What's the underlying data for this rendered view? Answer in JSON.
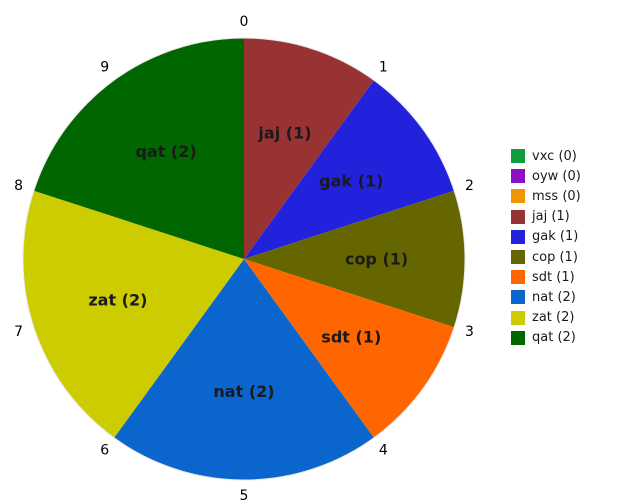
{
  "chart_data": {
    "type": "pie",
    "total": 10,
    "boundary_ticks": [
      "0",
      "1",
      "2",
      "3",
      "4",
      "5",
      "6",
      "7",
      "8",
      "9"
    ],
    "slices": [
      {
        "name": "vxc",
        "value": 0,
        "label": "vxc (0)",
        "color": "#0f9d3d"
      },
      {
        "name": "oyw",
        "value": 0,
        "label": "oyw (0)",
        "color": "#8b10c6"
      },
      {
        "name": "mss",
        "value": 0,
        "label": "mss (0)",
        "color": "#f29400"
      },
      {
        "name": "jaj",
        "value": 1,
        "label": "jaj (1)",
        "color": "#993333"
      },
      {
        "name": "gak",
        "value": 1,
        "label": "gak (1)",
        "color": "#2222dd"
      },
      {
        "name": "cop",
        "value": 1,
        "label": "cop (1)",
        "color": "#666600"
      },
      {
        "name": "sdt",
        "value": 1,
        "label": "sdt (1)",
        "color": "#ff6600"
      },
      {
        "name": "nat",
        "value": 2,
        "label": "nat (2)",
        "color": "#0a66cc"
      },
      {
        "name": "zat",
        "value": 2,
        "label": "zat (2)",
        "color": "#cccc00"
      },
      {
        "name": "qat",
        "value": 2,
        "label": "qat (2)",
        "color": "#006600"
      }
    ],
    "legend_position": "right"
  }
}
